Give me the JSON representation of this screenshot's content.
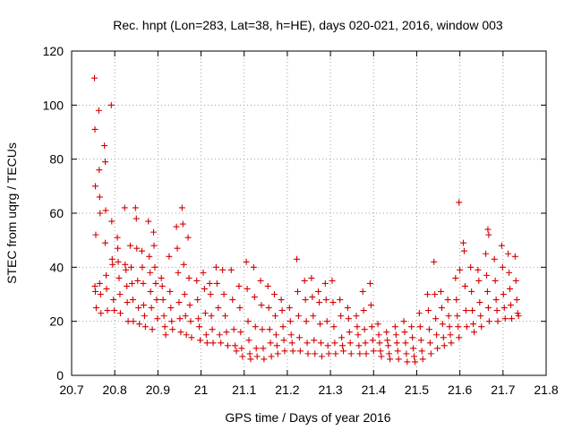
{
  "chart_data": {
    "type": "scatter",
    "title": "Rec. hnpt (Lon=283, Lat=38, h=HE), days 020-021, 2016, window 003",
    "xlabel": "GPS time / Days of year 2016",
    "ylabel": "STEC from uqrg / TECUs",
    "xlim": [
      20.7,
      21.8
    ],
    "ylim": [
      0,
      120
    ],
    "xticks": [
      "20.7",
      "20.8",
      "20.9",
      "21",
      "21.1",
      "21.2",
      "21.3",
      "21.4",
      "21.5",
      "21.6",
      "21.7",
      "21.8"
    ],
    "yticks": [
      "0",
      "20",
      "40",
      "60",
      "80",
      "100",
      "120"
    ],
    "grid": true,
    "marker": "plus",
    "color": "#d40000",
    "series": [
      {
        "points": [
          [
            20.753,
            110
          ],
          [
            20.754,
            91
          ],
          [
            20.755,
            70
          ],
          [
            20.756,
            52
          ],
          [
            20.754,
            33
          ],
          [
            20.755,
            31
          ],
          [
            20.757,
            25
          ],
          [
            20.763,
            98
          ],
          [
            20.764,
            76
          ],
          [
            20.765,
            66
          ],
          [
            20.766,
            60
          ],
          [
            20.765,
            34
          ],
          [
            20.767,
            30
          ],
          [
            20.768,
            23
          ],
          [
            20.776,
            85
          ],
          [
            20.778,
            79
          ],
          [
            20.779,
            61
          ],
          [
            20.778,
            49
          ],
          [
            20.78,
            37
          ],
          [
            20.781,
            32
          ],
          [
            20.783,
            24
          ],
          [
            20.792,
            100
          ],
          [
            20.793,
            57
          ],
          [
            20.794,
            43
          ],
          [
            20.795,
            41
          ],
          [
            20.797,
            28
          ],
          [
            20.799,
            24
          ],
          [
            20.806,
            51
          ],
          [
            20.807,
            47
          ],
          [
            20.808,
            42
          ],
          [
            20.81,
            36
          ],
          [
            20.812,
            30
          ],
          [
            20.813,
            23
          ],
          [
            20.823,
            62
          ],
          [
            20.824,
            41
          ],
          [
            20.826,
            39
          ],
          [
            20.828,
            33
          ],
          [
            20.829,
            27
          ],
          [
            20.831,
            20
          ],
          [
            20.836,
            48
          ],
          [
            20.838,
            40
          ],
          [
            20.84,
            34
          ],
          [
            20.842,
            28
          ],
          [
            20.843,
            20
          ],
          [
            20.848,
            62
          ],
          [
            20.85,
            58
          ],
          [
            20.851,
            47
          ],
          [
            20.853,
            35
          ],
          [
            20.855,
            25
          ],
          [
            20.857,
            19
          ],
          [
            20.863,
            46
          ],
          [
            20.864,
            40
          ],
          [
            20.866,
            34
          ],
          [
            20.867,
            26
          ],
          [
            20.869,
            22
          ],
          [
            20.871,
            18
          ],
          [
            20.878,
            57
          ],
          [
            20.88,
            44
          ],
          [
            20.882,
            38
          ],
          [
            20.883,
            31
          ],
          [
            20.885,
            25
          ],
          [
            20.887,
            17
          ],
          [
            20.89,
            53
          ],
          [
            20.891,
            48
          ],
          [
            20.893,
            40
          ],
          [
            20.895,
            34
          ],
          [
            20.897,
            28
          ],
          [
            20.899,
            21
          ],
          [
            20.908,
            36
          ],
          [
            20.91,
            33
          ],
          [
            20.912,
            28
          ],
          [
            20.914,
            22
          ],
          [
            20.916,
            18
          ],
          [
            20.918,
            15
          ],
          [
            20.926,
            44
          ],
          [
            20.928,
            31
          ],
          [
            20.93,
            25
          ],
          [
            20.932,
            20
          ],
          [
            20.934,
            17
          ],
          [
            20.943,
            55
          ],
          [
            20.945,
            47
          ],
          [
            20.947,
            38
          ],
          [
            20.949,
            27
          ],
          [
            20.951,
            21
          ],
          [
            20.953,
            16
          ],
          [
            20.956,
            62
          ],
          [
            20.958,
            56
          ],
          [
            20.96,
            41
          ],
          [
            20.962,
            30
          ],
          [
            20.964,
            22
          ],
          [
            20.966,
            15
          ],
          [
            20.97,
            51
          ],
          [
            20.972,
            36
          ],
          [
            20.974,
            26
          ],
          [
            20.976,
            20
          ],
          [
            20.978,
            14
          ],
          [
            20.99,
            35
          ],
          [
            20.992,
            28
          ],
          [
            20.994,
            21
          ],
          [
            20.996,
            18
          ],
          [
            20.998,
            13
          ],
          [
            21.005,
            38
          ],
          [
            21.008,
            32
          ],
          [
            21.01,
            23
          ],
          [
            21.012,
            15
          ],
          [
            21.014,
            12
          ],
          [
            21.02,
            34
          ],
          [
            21.022,
            30
          ],
          [
            21.024,
            22
          ],
          [
            21.026,
            17
          ],
          [
            21.028,
            12
          ],
          [
            21.035,
            40
          ],
          [
            21.037,
            34
          ],
          [
            21.04,
            25
          ],
          [
            21.043,
            15
          ],
          [
            21.046,
            12
          ],
          [
            21.05,
            39
          ],
          [
            21.053,
            30
          ],
          [
            21.056,
            22
          ],
          [
            21.059,
            16
          ],
          [
            21.062,
            11
          ],
          [
            21.07,
            39
          ],
          [
            21.073,
            28
          ],
          [
            21.076,
            17
          ],
          [
            21.079,
            11
          ],
          [
            21.082,
            9
          ],
          [
            21.088,
            33
          ],
          [
            21.09,
            25
          ],
          [
            21.092,
            16
          ],
          [
            21.094,
            10
          ],
          [
            21.096,
            7
          ],
          [
            21.105,
            42
          ],
          [
            21.107,
            32
          ],
          [
            21.109,
            20
          ],
          [
            21.111,
            13
          ],
          [
            21.113,
            8
          ],
          [
            21.115,
            6
          ],
          [
            21.122,
            40
          ],
          [
            21.124,
            29
          ],
          [
            21.126,
            18
          ],
          [
            21.128,
            10
          ],
          [
            21.13,
            7
          ],
          [
            21.138,
            35
          ],
          [
            21.14,
            26
          ],
          [
            21.142,
            17
          ],
          [
            21.144,
            10
          ],
          [
            21.146,
            6
          ],
          [
            21.155,
            33
          ],
          [
            21.157,
            25
          ],
          [
            21.159,
            17
          ],
          [
            21.161,
            12
          ],
          [
            21.163,
            7
          ],
          [
            21.17,
            30
          ],
          [
            21.172,
            22
          ],
          [
            21.174,
            15
          ],
          [
            21.176,
            11
          ],
          [
            21.178,
            8
          ],
          [
            21.186,
            28
          ],
          [
            21.188,
            24
          ],
          [
            21.19,
            18
          ],
          [
            21.192,
            13
          ],
          [
            21.194,
            9
          ],
          [
            21.205,
            25
          ],
          [
            21.207,
            20
          ],
          [
            21.209,
            15
          ],
          [
            21.211,
            12
          ],
          [
            21.213,
            9
          ],
          [
            21.222,
            43
          ],
          [
            21.224,
            31
          ],
          [
            21.226,
            22
          ],
          [
            21.228,
            14
          ],
          [
            21.23,
            9
          ],
          [
            21.24,
            35
          ],
          [
            21.242,
            28
          ],
          [
            21.244,
            20
          ],
          [
            21.246,
            12
          ],
          [
            21.248,
            8
          ],
          [
            21.256,
            36
          ],
          [
            21.258,
            29
          ],
          [
            21.26,
            22
          ],
          [
            21.262,
            13
          ],
          [
            21.264,
            8
          ],
          [
            21.272,
            31
          ],
          [
            21.274,
            27
          ],
          [
            21.276,
            19
          ],
          [
            21.278,
            12
          ],
          [
            21.28,
            7
          ],
          [
            21.288,
            34
          ],
          [
            21.29,
            28
          ],
          [
            21.292,
            20
          ],
          [
            21.294,
            11
          ],
          [
            21.296,
            8
          ],
          [
            21.304,
            35
          ],
          [
            21.306,
            27
          ],
          [
            21.308,
            18
          ],
          [
            21.31,
            12
          ],
          [
            21.312,
            8
          ],
          [
            21.322,
            28
          ],
          [
            21.324,
            22
          ],
          [
            21.326,
            14
          ],
          [
            21.328,
            11
          ],
          [
            21.33,
            9
          ],
          [
            21.34,
            25
          ],
          [
            21.342,
            21
          ],
          [
            21.344,
            16
          ],
          [
            21.346,
            12
          ],
          [
            21.348,
            8
          ],
          [
            21.36,
            22
          ],
          [
            21.362,
            18
          ],
          [
            21.364,
            15
          ],
          [
            21.366,
            11
          ],
          [
            21.368,
            8
          ],
          [
            21.375,
            31
          ],
          [
            21.377,
            24
          ],
          [
            21.379,
            17
          ],
          [
            21.381,
            12
          ],
          [
            21.383,
            8
          ],
          [
            21.392,
            34
          ],
          [
            21.394,
            26
          ],
          [
            21.396,
            18
          ],
          [
            21.398,
            13
          ],
          [
            21.4,
            9
          ],
          [
            21.41,
            19
          ],
          [
            21.412,
            15
          ],
          [
            21.414,
            12
          ],
          [
            21.416,
            9
          ],
          [
            21.418,
            7
          ],
          [
            21.43,
            16
          ],
          [
            21.432,
            13
          ],
          [
            21.434,
            11
          ],
          [
            21.436,
            8
          ],
          [
            21.438,
            6
          ],
          [
            21.45,
            18
          ],
          [
            21.452,
            15
          ],
          [
            21.454,
            12
          ],
          [
            21.456,
            9
          ],
          [
            21.458,
            6
          ],
          [
            21.47,
            20
          ],
          [
            21.472,
            16
          ],
          [
            21.474,
            12
          ],
          [
            21.476,
            8
          ],
          [
            21.478,
            5
          ],
          [
            21.488,
            18
          ],
          [
            21.49,
            14
          ],
          [
            21.492,
            10
          ],
          [
            21.494,
            7
          ],
          [
            21.496,
            5
          ],
          [
            21.506,
            23
          ],
          [
            21.508,
            18
          ],
          [
            21.51,
            13
          ],
          [
            21.512,
            9
          ],
          [
            21.514,
            6
          ],
          [
            21.525,
            30
          ],
          [
            21.527,
            24
          ],
          [
            21.529,
            17
          ],
          [
            21.531,
            12
          ],
          [
            21.533,
            8
          ],
          [
            21.54,
            42
          ],
          [
            21.542,
            30
          ],
          [
            21.544,
            21
          ],
          [
            21.546,
            15
          ],
          [
            21.548,
            10
          ],
          [
            21.556,
            31
          ],
          [
            21.558,
            25
          ],
          [
            21.56,
            19
          ],
          [
            21.562,
            14
          ],
          [
            21.564,
            11
          ],
          [
            21.572,
            28
          ],
          [
            21.574,
            22
          ],
          [
            21.576,
            18
          ],
          [
            21.578,
            15
          ],
          [
            21.58,
            12
          ],
          [
            21.59,
            36
          ],
          [
            21.592,
            28
          ],
          [
            21.594,
            22
          ],
          [
            21.596,
            18
          ],
          [
            21.598,
            14
          ],
          [
            21.598,
            64
          ],
          [
            21.6,
            39
          ],
          [
            21.608,
            49
          ],
          [
            21.61,
            46
          ],
          [
            21.612,
            33
          ],
          [
            21.614,
            24
          ],
          [
            21.616,
            18
          ],
          [
            21.625,
            40
          ],
          [
            21.627,
            31
          ],
          [
            21.629,
            24
          ],
          [
            21.631,
            19
          ],
          [
            21.633,
            16
          ],
          [
            21.642,
            39
          ],
          [
            21.644,
            35
          ],
          [
            21.646,
            27
          ],
          [
            21.648,
            22
          ],
          [
            21.65,
            18
          ],
          [
            21.66,
            45
          ],
          [
            21.662,
            37
          ],
          [
            21.664,
            31
          ],
          [
            21.666,
            25
          ],
          [
            21.668,
            20
          ],
          [
            21.665,
            54
          ],
          [
            21.667,
            52
          ],
          [
            21.68,
            43
          ],
          [
            21.682,
            35
          ],
          [
            21.684,
            28
          ],
          [
            21.686,
            24
          ],
          [
            21.688,
            20
          ],
          [
            21.697,
            48
          ],
          [
            21.699,
            40
          ],
          [
            21.701,
            30
          ],
          [
            21.703,
            25
          ],
          [
            21.705,
            21
          ],
          [
            21.712,
            45
          ],
          [
            21.714,
            38
          ],
          [
            21.716,
            32
          ],
          [
            21.718,
            26
          ],
          [
            21.72,
            21
          ],
          [
            21.728,
            44
          ],
          [
            21.73,
            35
          ],
          [
            21.732,
            28
          ],
          [
            21.734,
            23
          ],
          [
            21.736,
            22
          ]
        ]
      }
    ]
  }
}
